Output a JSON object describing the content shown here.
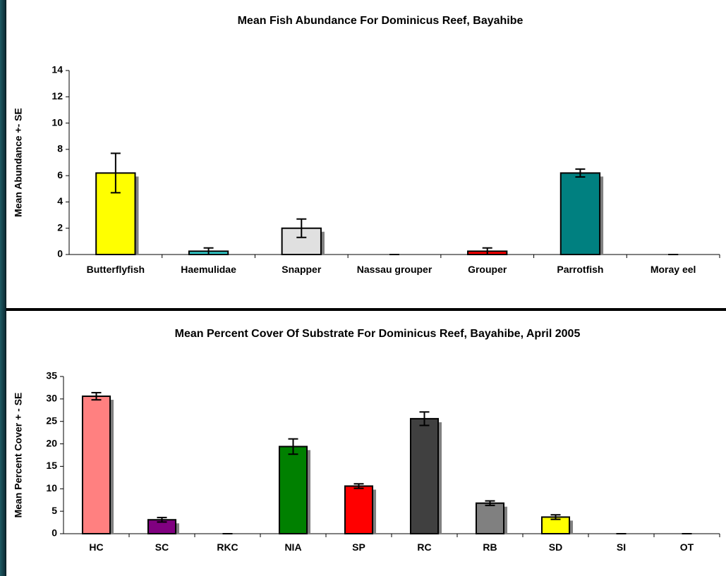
{
  "chart_data": [
    {
      "type": "bar",
      "title": "Mean Fish Abundance For Dominicus Reef, Bayahibe",
      "y_label": "Mean Abundance +- SE",
      "categories": [
        "Butterflyfish",
        "Haemulidae",
        "Snapper",
        "Nassau grouper",
        "Grouper",
        "Parrotfish",
        "Moray eel"
      ],
      "values": [
        6.2,
        0.25,
        2.0,
        0,
        0.25,
        6.2,
        0
      ],
      "errors": [
        1.5,
        0.25,
        0.7,
        0,
        0.25,
        0.3,
        0
      ],
      "colors": [
        "#ffff00",
        "#33cccc",
        "#e0e0e0",
        "#ffffff",
        "#ff0000",
        "#008080",
        "#ffffff"
      ],
      "ylim": [
        0,
        14
      ],
      "yticks": [
        0,
        2,
        4,
        6,
        8,
        10,
        12,
        14
      ],
      "grid": false
    },
    {
      "type": "bar",
      "title": "Mean Percent Cover Of Substrate For Dominicus Reef, Bayahibe, April 2005",
      "y_label": "Mean Percent Cover + - SE",
      "categories": [
        "HC",
        "SC",
        "RKC",
        "NIA",
        "SP",
        "RC",
        "RB",
        "SD",
        "SI",
        "OT"
      ],
      "values": [
        30.6,
        3.1,
        0,
        19.4,
        10.6,
        25.6,
        6.8,
        3.7,
        0,
        0
      ],
      "errors": [
        0.8,
        0.5,
        0,
        1.7,
        0.5,
        1.5,
        0.5,
        0.5,
        0,
        0
      ],
      "colors": [
        "#ff8080",
        "#800080",
        "#ffffff",
        "#008000",
        "#ff0000",
        "#404040",
        "#808080",
        "#ffff00",
        "#ffffff",
        "#ffffff"
      ],
      "ylim": [
        0,
        35
      ],
      "yticks": [
        0,
        5,
        10,
        15,
        20,
        25,
        30,
        35
      ],
      "grid": false
    }
  ]
}
